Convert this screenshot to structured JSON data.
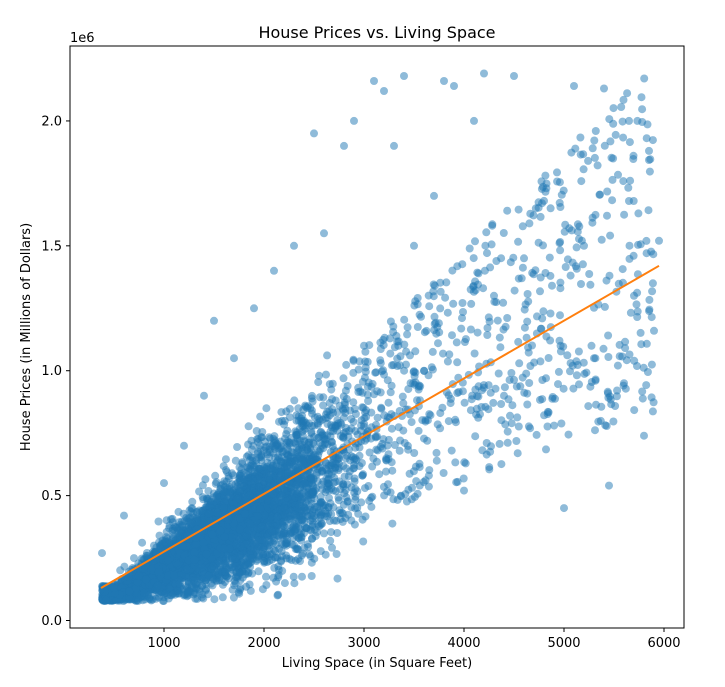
{
  "chart_data": {
    "type": "scatter",
    "title": "House Prices vs. Living Space",
    "xlabel": "Living Space (in Square Feet)",
    "ylabel": "House Prices (in Millions of Dollars)",
    "y_offset_text": "1e6",
    "xlim": [
      60,
      6200
    ],
    "ylim": [
      -30000,
      2300000
    ],
    "xticks": [
      1000,
      2000,
      3000,
      4000,
      5000,
      6000
    ],
    "xtick_labels": [
      "1000",
      "2000",
      "3000",
      "4000",
      "5000",
      "6000"
    ],
    "yticks": [
      0,
      500000,
      1000000,
      1500000,
      2000000
    ],
    "ytick_labels": [
      "0.0",
      "0.5",
      "1.0",
      "1.5",
      "2.0"
    ],
    "grid": false,
    "series": [
      {
        "kind": "scatter",
        "color": "#1f77b4",
        "alpha": 0.5,
        "points_sample": [
          [
            380,
            270000
          ],
          [
            420,
            80000
          ],
          [
            500,
            130000
          ],
          [
            600,
            420000
          ],
          [
            700,
            250000
          ],
          [
            800,
            110000
          ],
          [
            900,
            300000
          ],
          [
            1000,
            550000
          ],
          [
            1100,
            180000
          ],
          [
            1200,
            700000
          ],
          [
            1300,
            350000
          ],
          [
            1400,
            900000
          ],
          [
            1500,
            1200000
          ],
          [
            1600,
            450000
          ],
          [
            1700,
            1050000
          ],
          [
            1800,
            250000
          ],
          [
            1900,
            1250000
          ],
          [
            2000,
            600000
          ],
          [
            2100,
            1400000
          ],
          [
            2200,
            350000
          ],
          [
            2300,
            1500000
          ],
          [
            2400,
            800000
          ],
          [
            2500,
            1950000
          ],
          [
            2600,
            1550000
          ],
          [
            2700,
            400000
          ],
          [
            2800,
            1900000
          ],
          [
            2900,
            2000000
          ],
          [
            3000,
            1100000
          ],
          [
            3100,
            2160000
          ],
          [
            3200,
            2120000
          ],
          [
            3300,
            1900000
          ],
          [
            3400,
            2180000
          ],
          [
            3500,
            1500000
          ],
          [
            3600,
            1000000
          ],
          [
            3700,
            1700000
          ],
          [
            3800,
            2160000
          ],
          [
            3900,
            2140000
          ],
          [
            4000,
            520000
          ],
          [
            4100,
            2000000
          ],
          [
            4200,
            2190000
          ],
          [
            4300,
            1300000
          ],
          [
            4400,
            900000
          ],
          [
            4500,
            2180000
          ],
          [
            4600,
            1450000
          ],
          [
            4800,
            1680000
          ],
          [
            5000,
            450000
          ],
          [
            5100,
            2140000
          ],
          [
            5200,
            1500000
          ],
          [
            5300,
            1050000
          ],
          [
            5400,
            2130000
          ],
          [
            5450,
            540000
          ],
          [
            5600,
            950000
          ],
          [
            5650,
            2000000
          ],
          [
            5700,
            1300000
          ],
          [
            5800,
            740000
          ],
          [
            5850,
            1880000
          ],
          [
            5900,
            1160000
          ],
          [
            5950,
            1520000
          ]
        ]
      },
      {
        "kind": "line",
        "color": "#ff7f0e",
        "x": [
          370,
          5950
        ],
        "y": [
          130000,
          1420000
        ]
      }
    ]
  }
}
